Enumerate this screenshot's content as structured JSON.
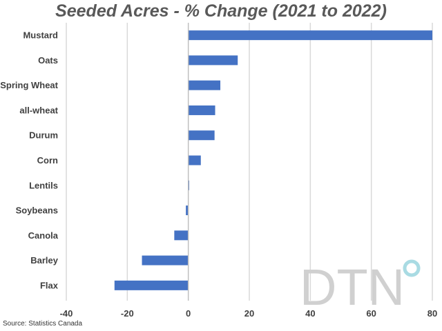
{
  "chart_data": {
    "type": "bar",
    "orientation": "horizontal",
    "title": "Seeded Acres - % Change (2021 to 2022)",
    "categories": [
      "Mustard",
      "Oats",
      "Spring Wheat",
      "all-wheat",
      "Durum",
      "Corn",
      "Lentils",
      "Soybeans",
      "Canola",
      "Barley",
      "Flax"
    ],
    "values": [
      80,
      16.2,
      10.5,
      8.8,
      8.6,
      4.1,
      0.3,
      -0.8,
      -4.6,
      -15.2,
      -24.2
    ],
    "xlim": [
      -40,
      80
    ],
    "xticks": [
      "-40",
      "-20",
      "0",
      "20",
      "40",
      "60",
      "80"
    ],
    "grid": "vertical",
    "bar_color": "#4472c4",
    "grid_color": "#d9d9d9"
  },
  "source": "Source: Statistics Canada",
  "logo_text": "DTN",
  "logo_color": "#d0d0d0",
  "logo_accent_color": "#a9dbe3"
}
